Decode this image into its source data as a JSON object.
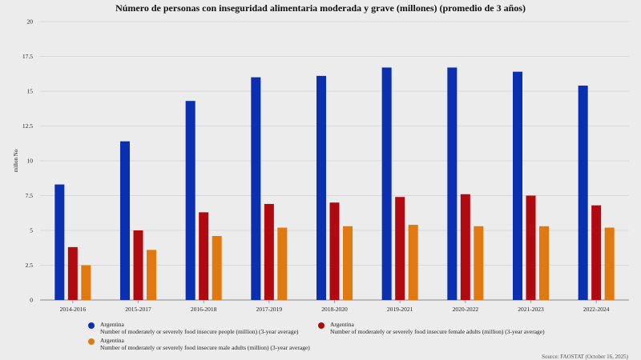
{
  "chart_data": {
    "type": "bar",
    "title": "Número de personas con inseguridad alimentaria moderada y grave (millones) (promedio de 3 años)",
    "xlabel": "",
    "ylabel": "millon No",
    "ylim": [
      0,
      20
    ],
    "yticks": [
      0,
      2.5,
      5,
      7.5,
      10,
      12.5,
      15,
      17.5,
      20
    ],
    "ytick_labels": [
      "0",
      "2.5",
      "5",
      "7.5",
      "10",
      "12.5",
      "15",
      "17.5",
      "20"
    ],
    "grid": true,
    "legend_position": "bottom",
    "categories": [
      "2014-2016",
      "2015-2017",
      "2016-2018",
      "2017-2019",
      "2018-2020",
      "2019-2021",
      "2020-2022",
      "2021-2023",
      "2022-2024"
    ],
    "series": [
      {
        "name": "Argentina",
        "description": "Number of moderately or severely food insecure people (million) (3-year average)",
        "color": "#0a2fb0",
        "values": [
          8.3,
          11.4,
          14.3,
          16.0,
          16.1,
          16.7,
          16.7,
          16.4,
          15.4
        ]
      },
      {
        "name": "Argentina",
        "description": "Number of moderately or severely food insecure female adults (million) (3-year average)",
        "color": "#b0090f",
        "values": [
          3.8,
          5.0,
          6.3,
          6.9,
          7.0,
          7.4,
          7.6,
          7.5,
          6.8
        ]
      },
      {
        "name": "Argentina",
        "description": "Number of moderately or severely food insecure male adults (million) (3-year average)",
        "color": "#e07a10",
        "values": [
          2.5,
          3.6,
          4.6,
          5.2,
          5.3,
          5.4,
          5.3,
          5.3,
          5.2
        ]
      }
    ],
    "source": "Source: FAOSTAT (October 16, 2025)"
  }
}
